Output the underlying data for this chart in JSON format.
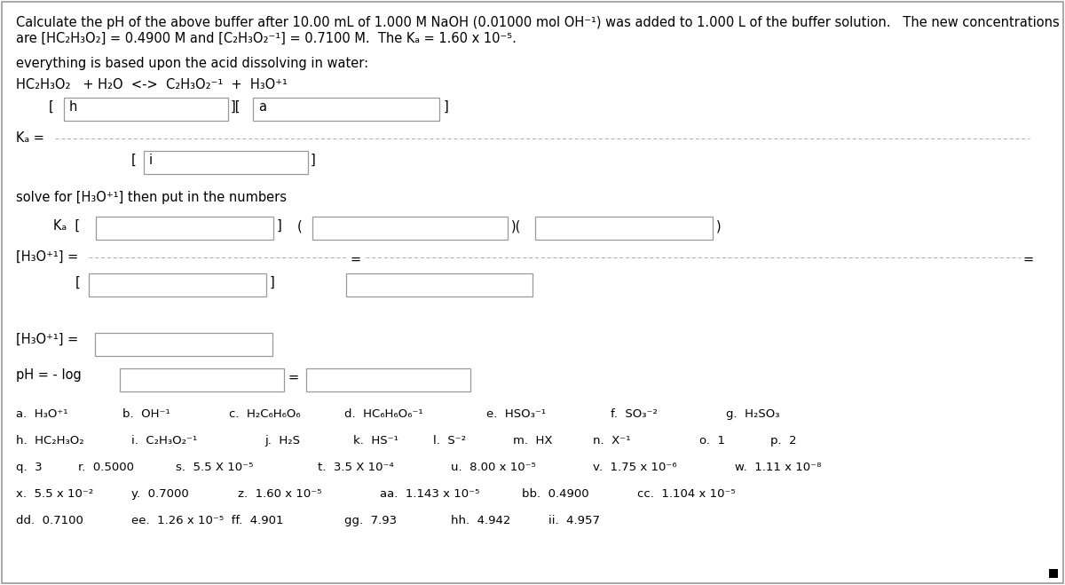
{
  "bg_color": "#ffffff",
  "title_line1": "Calculate the pH of the above buffer after 10.00 mL of 1.000 M NaOH (0.01000 mol OH⁻¹) was added to 1.000 L of the buffer solution.   The new concentrations",
  "title_line2": "are [HC₂H₃O₂] = 0.4900 M and [C₂H₃O₂⁻¹] = 0.7100 M.  The Kₐ = 1.60 x 10⁻⁵.",
  "line3": "everything is based upon the acid dissolving in water:",
  "reaction": "HC₂H₃O₂   + H₂O  <->  C₂H₃O₂⁻¹  +  H₃O⁺¹",
  "solve_label": "solve for [H₃O⁺¹] then put in the numbers",
  "fs_main": 10.5,
  "fs_small": 9.5
}
